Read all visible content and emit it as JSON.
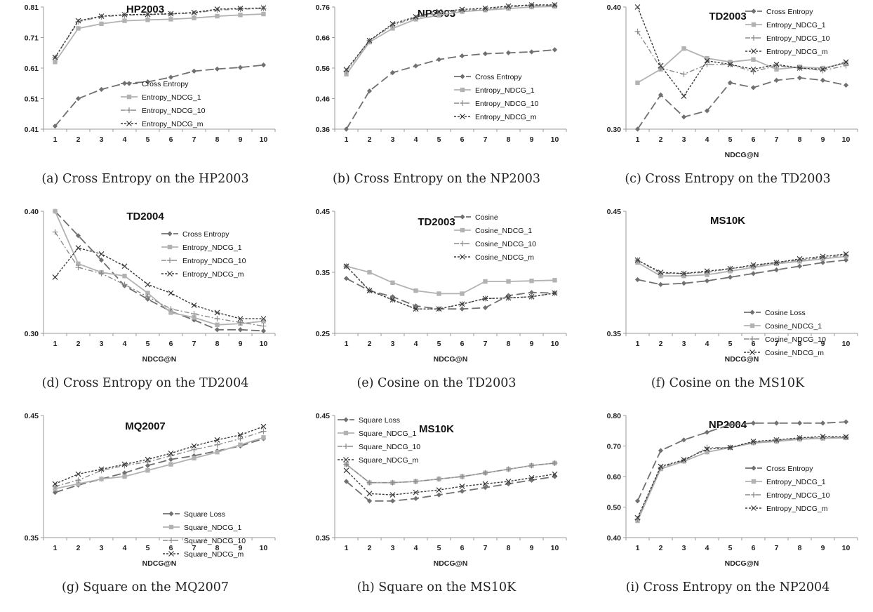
{
  "figure": {
    "panels": [
      {
        "caption": "(a) Cross Entropy on the HP2003",
        "chart_data": {
          "type": "line",
          "title": "HP2003",
          "xlabel": "",
          "ylabel": "",
          "x": [
            1,
            2,
            3,
            4,
            5,
            6,
            7,
            8,
            9,
            10
          ],
          "ylim": [
            0.41,
            0.81
          ],
          "yticks": [
            "0.41",
            "0.51",
            "0.61",
            "0.71",
            "0.81"
          ],
          "legend": "bottom-right",
          "series": [
            {
              "name": "Cross Entropy",
              "values": [
                0.42,
                0.51,
                0.54,
                0.56,
                0.565,
                0.58,
                0.6,
                0.607,
                0.612,
                0.62
              ]
            },
            {
              "name": "Entropy_NDCG_1",
              "values": [
                0.63,
                0.74,
                0.755,
                0.765,
                0.768,
                0.77,
                0.774,
                0.78,
                0.784,
                0.787
              ]
            },
            {
              "name": "Entropy_NDCG_10",
              "values": [
                0.645,
                0.762,
                0.778,
                0.783,
                0.785,
                0.787,
                0.79,
                0.8,
                0.803,
                0.805
              ]
            },
            {
              "name": "Entropy_NDCG_m",
              "values": [
                0.645,
                0.765,
                0.78,
                0.785,
                0.786,
                0.788,
                0.792,
                0.803,
                0.805,
                0.807
              ]
            }
          ]
        }
      },
      {
        "caption": "(b) Cross Entropy on the NP2003",
        "chart_data": {
          "type": "line",
          "title": "NP2003",
          "xlabel": "",
          "ylabel": "",
          "x": [
            1,
            2,
            3,
            4,
            5,
            6,
            7,
            8,
            9,
            10
          ],
          "ylim": [
            0.36,
            0.76
          ],
          "yticks": [
            "0.36",
            "0.46",
            "0.56",
            "0.66",
            "0.76"
          ],
          "legend": "bottom-right",
          "series": [
            {
              "name": "Cross Entropy",
              "values": [
                0.36,
                0.485,
                0.545,
                0.567,
                0.588,
                0.6,
                0.607,
                0.61,
                0.613,
                0.62
              ]
            },
            {
              "name": "Entropy_NDCG_1",
              "values": [
                0.54,
                0.645,
                0.69,
                0.72,
                0.733,
                0.745,
                0.75,
                0.755,
                0.76,
                0.762
              ]
            },
            {
              "name": "Entropy_NDCG_10",
              "values": [
                0.55,
                0.65,
                0.7,
                0.725,
                0.74,
                0.748,
                0.753,
                0.76,
                0.765,
                0.765
              ]
            },
            {
              "name": "Entropy_NDCG_m",
              "values": [
                0.555,
                0.65,
                0.705,
                0.728,
                0.745,
                0.752,
                0.756,
                0.763,
                0.767,
                0.767
              ]
            }
          ]
        }
      },
      {
        "caption": "(c) Cross Entropy on the TD2003",
        "chart_data": {
          "type": "line",
          "title": "TD2003",
          "xlabel": "NDCG@N",
          "ylabel": "",
          "x": [
            1,
            2,
            3,
            4,
            5,
            6,
            7,
            8,
            9,
            10
          ],
          "ylim": [
            0.3,
            0.4
          ],
          "yticks": [
            "0.30",
            "0.40"
          ],
          "legend": "top-right",
          "series": [
            {
              "name": "Cross Entropy",
              "values": [
                0.3,
                0.328,
                0.31,
                0.315,
                0.338,
                0.334,
                0.34,
                0.342,
                0.34,
                0.336
              ]
            },
            {
              "name": "Entropy_NDCG_1",
              "values": [
                0.338,
                0.349,
                0.366,
                0.358,
                0.355,
                0.357,
                0.349,
                0.351,
                0.35,
                0.354
              ]
            },
            {
              "name": "Entropy_NDCG_10",
              "values": [
                0.38,
                0.35,
                0.345,
                0.353,
                0.353,
                0.347,
                0.352,
                0.35,
                0.348,
                0.352
              ]
            },
            {
              "name": "Entropy_NDCG_m",
              "values": [
                0.4,
                0.352,
                0.327,
                0.356,
                0.353,
                0.349,
                0.353,
                0.35,
                0.349,
                0.355
              ]
            }
          ]
        }
      },
      {
        "caption": "(d) Cross Entropy on the TD2004",
        "chart_data": {
          "type": "line",
          "title": "TD2004",
          "xlabel": "NDCG@N",
          "ylabel": "",
          "x": [
            1,
            2,
            3,
            4,
            5,
            6,
            7,
            8,
            9,
            10
          ],
          "ylim": [
            0.3,
            0.4
          ],
          "yticks": [
            "0.30",
            "0.40"
          ],
          "legend": "top-right",
          "series": [
            {
              "name": "Cross Entropy",
              "values": [
                0.4,
                0.38,
                0.36,
                0.339,
                0.328,
                0.318,
                0.311,
                0.303,
                0.303,
                0.302
              ]
            },
            {
              "name": "Entropy_NDCG_1",
              "values": [
                0.4,
                0.357,
                0.35,
                0.347,
                0.333,
                0.317,
                0.313,
                0.307,
                0.308,
                0.31
              ]
            },
            {
              "name": "Entropy_NDCG_10",
              "values": [
                0.383,
                0.354,
                0.349,
                0.34,
                0.33,
                0.32,
                0.316,
                0.312,
                0.309,
                0.306
              ]
            },
            {
              "name": "Entropy_NDCG_m",
              "values": [
                0.346,
                0.37,
                0.365,
                0.355,
                0.34,
                0.333,
                0.323,
                0.317,
                0.312,
                0.312
              ]
            }
          ]
        }
      },
      {
        "caption": "(e) Cosine on the TD2003",
        "chart_data": {
          "type": "line",
          "title": "TD2003",
          "xlabel": "NDCG@N",
          "ylabel": "",
          "x": [
            1,
            2,
            3,
            4,
            5,
            6,
            7,
            8,
            9,
            10
          ],
          "ylim": [
            0.25,
            0.45
          ],
          "yticks": [
            "0.25",
            "0.35",
            "0.45"
          ],
          "legend": "top-right",
          "series": [
            {
              "name": "Cosine",
              "values": [
                0.34,
                0.32,
                0.31,
                0.295,
                0.29,
                0.29,
                0.292,
                0.312,
                0.317,
                0.316
              ]
            },
            {
              "name": "Cosine_NDCG_1",
              "values": [
                0.36,
                0.35,
                0.333,
                0.32,
                0.315,
                0.315,
                0.335,
                0.335,
                0.336,
                0.337
              ]
            },
            {
              "name": "Cosine_NDCG_10",
              "values": [
                0.36,
                0.321,
                0.305,
                0.29,
                0.29,
                0.298,
                0.307,
                0.308,
                0.31,
                0.316
              ]
            },
            {
              "name": "Cosine_NDCG_m",
              "values": [
                0.36,
                0.32,
                0.305,
                0.29,
                0.29,
                0.298,
                0.307,
                0.308,
                0.31,
                0.316
              ]
            }
          ]
        }
      },
      {
        "caption": "(f) Cosine on the MS10K",
        "chart_data": {
          "type": "line",
          "title": "MS10K",
          "xlabel": "NDCG@N",
          "ylabel": "",
          "x": [
            1,
            2,
            3,
            4,
            5,
            6,
            7,
            8,
            9,
            10
          ],
          "ylim": [
            0.35,
            0.45
          ],
          "yticks": [
            "0.35",
            "0.45"
          ],
          "legend": "bottom-right",
          "series": [
            {
              "name": "Cosine Loss",
              "values": [
                0.394,
                0.39,
                0.391,
                0.393,
                0.396,
                0.399,
                0.402,
                0.405,
                0.408,
                0.41
              ]
            },
            {
              "name": "Cosine_NDCG_1",
              "values": [
                0.408,
                0.397,
                0.397,
                0.398,
                0.401,
                0.404,
                0.407,
                0.409,
                0.411,
                0.413
              ]
            },
            {
              "name": "Cosine_NDCG_10",
              "values": [
                0.41,
                0.399,
                0.399,
                0.4,
                0.403,
                0.405,
                0.408,
                0.41,
                0.412,
                0.414
              ]
            },
            {
              "name": "Cosine_NDCG_m",
              "values": [
                0.41,
                0.4,
                0.399,
                0.401,
                0.403,
                0.406,
                0.408,
                0.411,
                0.413,
                0.415
              ]
            }
          ]
        }
      },
      {
        "caption": "(g) Square on the MQ2007",
        "chart_data": {
          "type": "line",
          "title": "MQ2007",
          "xlabel": "NDCG@N",
          "ylabel": "",
          "x": [
            1,
            2,
            3,
            4,
            5,
            6,
            7,
            8,
            9,
            10
          ],
          "ylim": [
            0.35,
            0.45
          ],
          "yticks": [
            "0.35",
            "0.45"
          ],
          "legend": "bottom-right",
          "series": [
            {
              "name": "Square Loss",
              "values": [
                0.387,
                0.393,
                0.398,
                0.403,
                0.409,
                0.414,
                0.417,
                0.421,
                0.425,
                0.431
              ]
            },
            {
              "name": "Square_NDCG_1",
              "values": [
                0.39,
                0.394,
                0.398,
                0.4,
                0.405,
                0.41,
                0.415,
                0.42,
                0.426,
                0.432
              ]
            },
            {
              "name": "Square_NDCG_10",
              "values": [
                0.392,
                0.397,
                0.405,
                0.409,
                0.412,
                0.417,
                0.422,
                0.426,
                0.431,
                0.437
              ]
            },
            {
              "name": "Square_NDCG_m",
              "values": [
                0.394,
                0.402,
                0.406,
                0.41,
                0.414,
                0.419,
                0.425,
                0.43,
                0.434,
                0.441
              ]
            }
          ]
        }
      },
      {
        "caption": "(h) Square on the MS10K",
        "chart_data": {
          "type": "line",
          "title": "MS10K",
          "xlabel": "NDCG@N",
          "ylabel": "",
          "x": [
            1,
            2,
            3,
            4,
            5,
            6,
            7,
            8,
            9,
            10
          ],
          "ylim": [
            0.35,
            0.45
          ],
          "yticks": [
            "0.35",
            "0.45"
          ],
          "legend": "top-left",
          "series": [
            {
              "name": "Square Loss",
              "values": [
                0.396,
                0.38,
                0.38,
                0.382,
                0.385,
                0.388,
                0.391,
                0.394,
                0.397,
                0.4
              ]
            },
            {
              "name": "Square_NDCG_1",
              "values": [
                0.41,
                0.395,
                0.395,
                0.396,
                0.398,
                0.4,
                0.403,
                0.406,
                0.409,
                0.411
              ]
            },
            {
              "name": "Square_NDCG_10",
              "values": [
                0.41,
                0.395,
                0.395,
                0.396,
                0.398,
                0.4,
                0.403,
                0.406,
                0.409,
                0.411
              ]
            },
            {
              "name": "Square_NDCG_m",
              "values": [
                0.405,
                0.386,
                0.385,
                0.387,
                0.389,
                0.392,
                0.394,
                0.396,
                0.399,
                0.402
              ]
            }
          ]
        }
      },
      {
        "caption": "(i) Cross Entropy on the NP2004",
        "chart_data": {
          "type": "line",
          "title": "NP2004",
          "xlabel": "NDCG@N",
          "ylabel": "",
          "x": [
            1,
            2,
            3,
            4,
            5,
            6,
            7,
            8,
            9,
            10
          ],
          "ylim": [
            0.4,
            0.8
          ],
          "yticks": [
            "0.40",
            "0.50",
            "0.60",
            "0.70",
            "0.80"
          ],
          "legend": "bottom-right",
          "series": [
            {
              "name": "Cross Entropy",
              "values": [
                0.52,
                0.685,
                0.72,
                0.745,
                0.77,
                0.775,
                0.775,
                0.775,
                0.775,
                0.779
              ]
            },
            {
              "name": "Entropy_NDCG_1",
              "values": [
                0.455,
                0.625,
                0.65,
                0.68,
                0.695,
                0.71,
                0.715,
                0.722,
                0.725,
                0.727
              ]
            },
            {
              "name": "Entropy_NDCG_10",
              "values": [
                0.46,
                0.63,
                0.652,
                0.695,
                0.695,
                0.712,
                0.718,
                0.725,
                0.728,
                0.728
              ]
            },
            {
              "name": "Entropy_NDCG_m",
              "values": [
                0.465,
                0.633,
                0.655,
                0.69,
                0.695,
                0.715,
                0.72,
                0.727,
                0.731,
                0.73
              ]
            }
          ]
        }
      }
    ]
  },
  "colors": {
    "s0": "#707070",
    "s1": "#b2b2b2",
    "s2": "#8c8c8c",
    "s3": "#3a3a3a",
    "axis": "#9a9a9a"
  }
}
